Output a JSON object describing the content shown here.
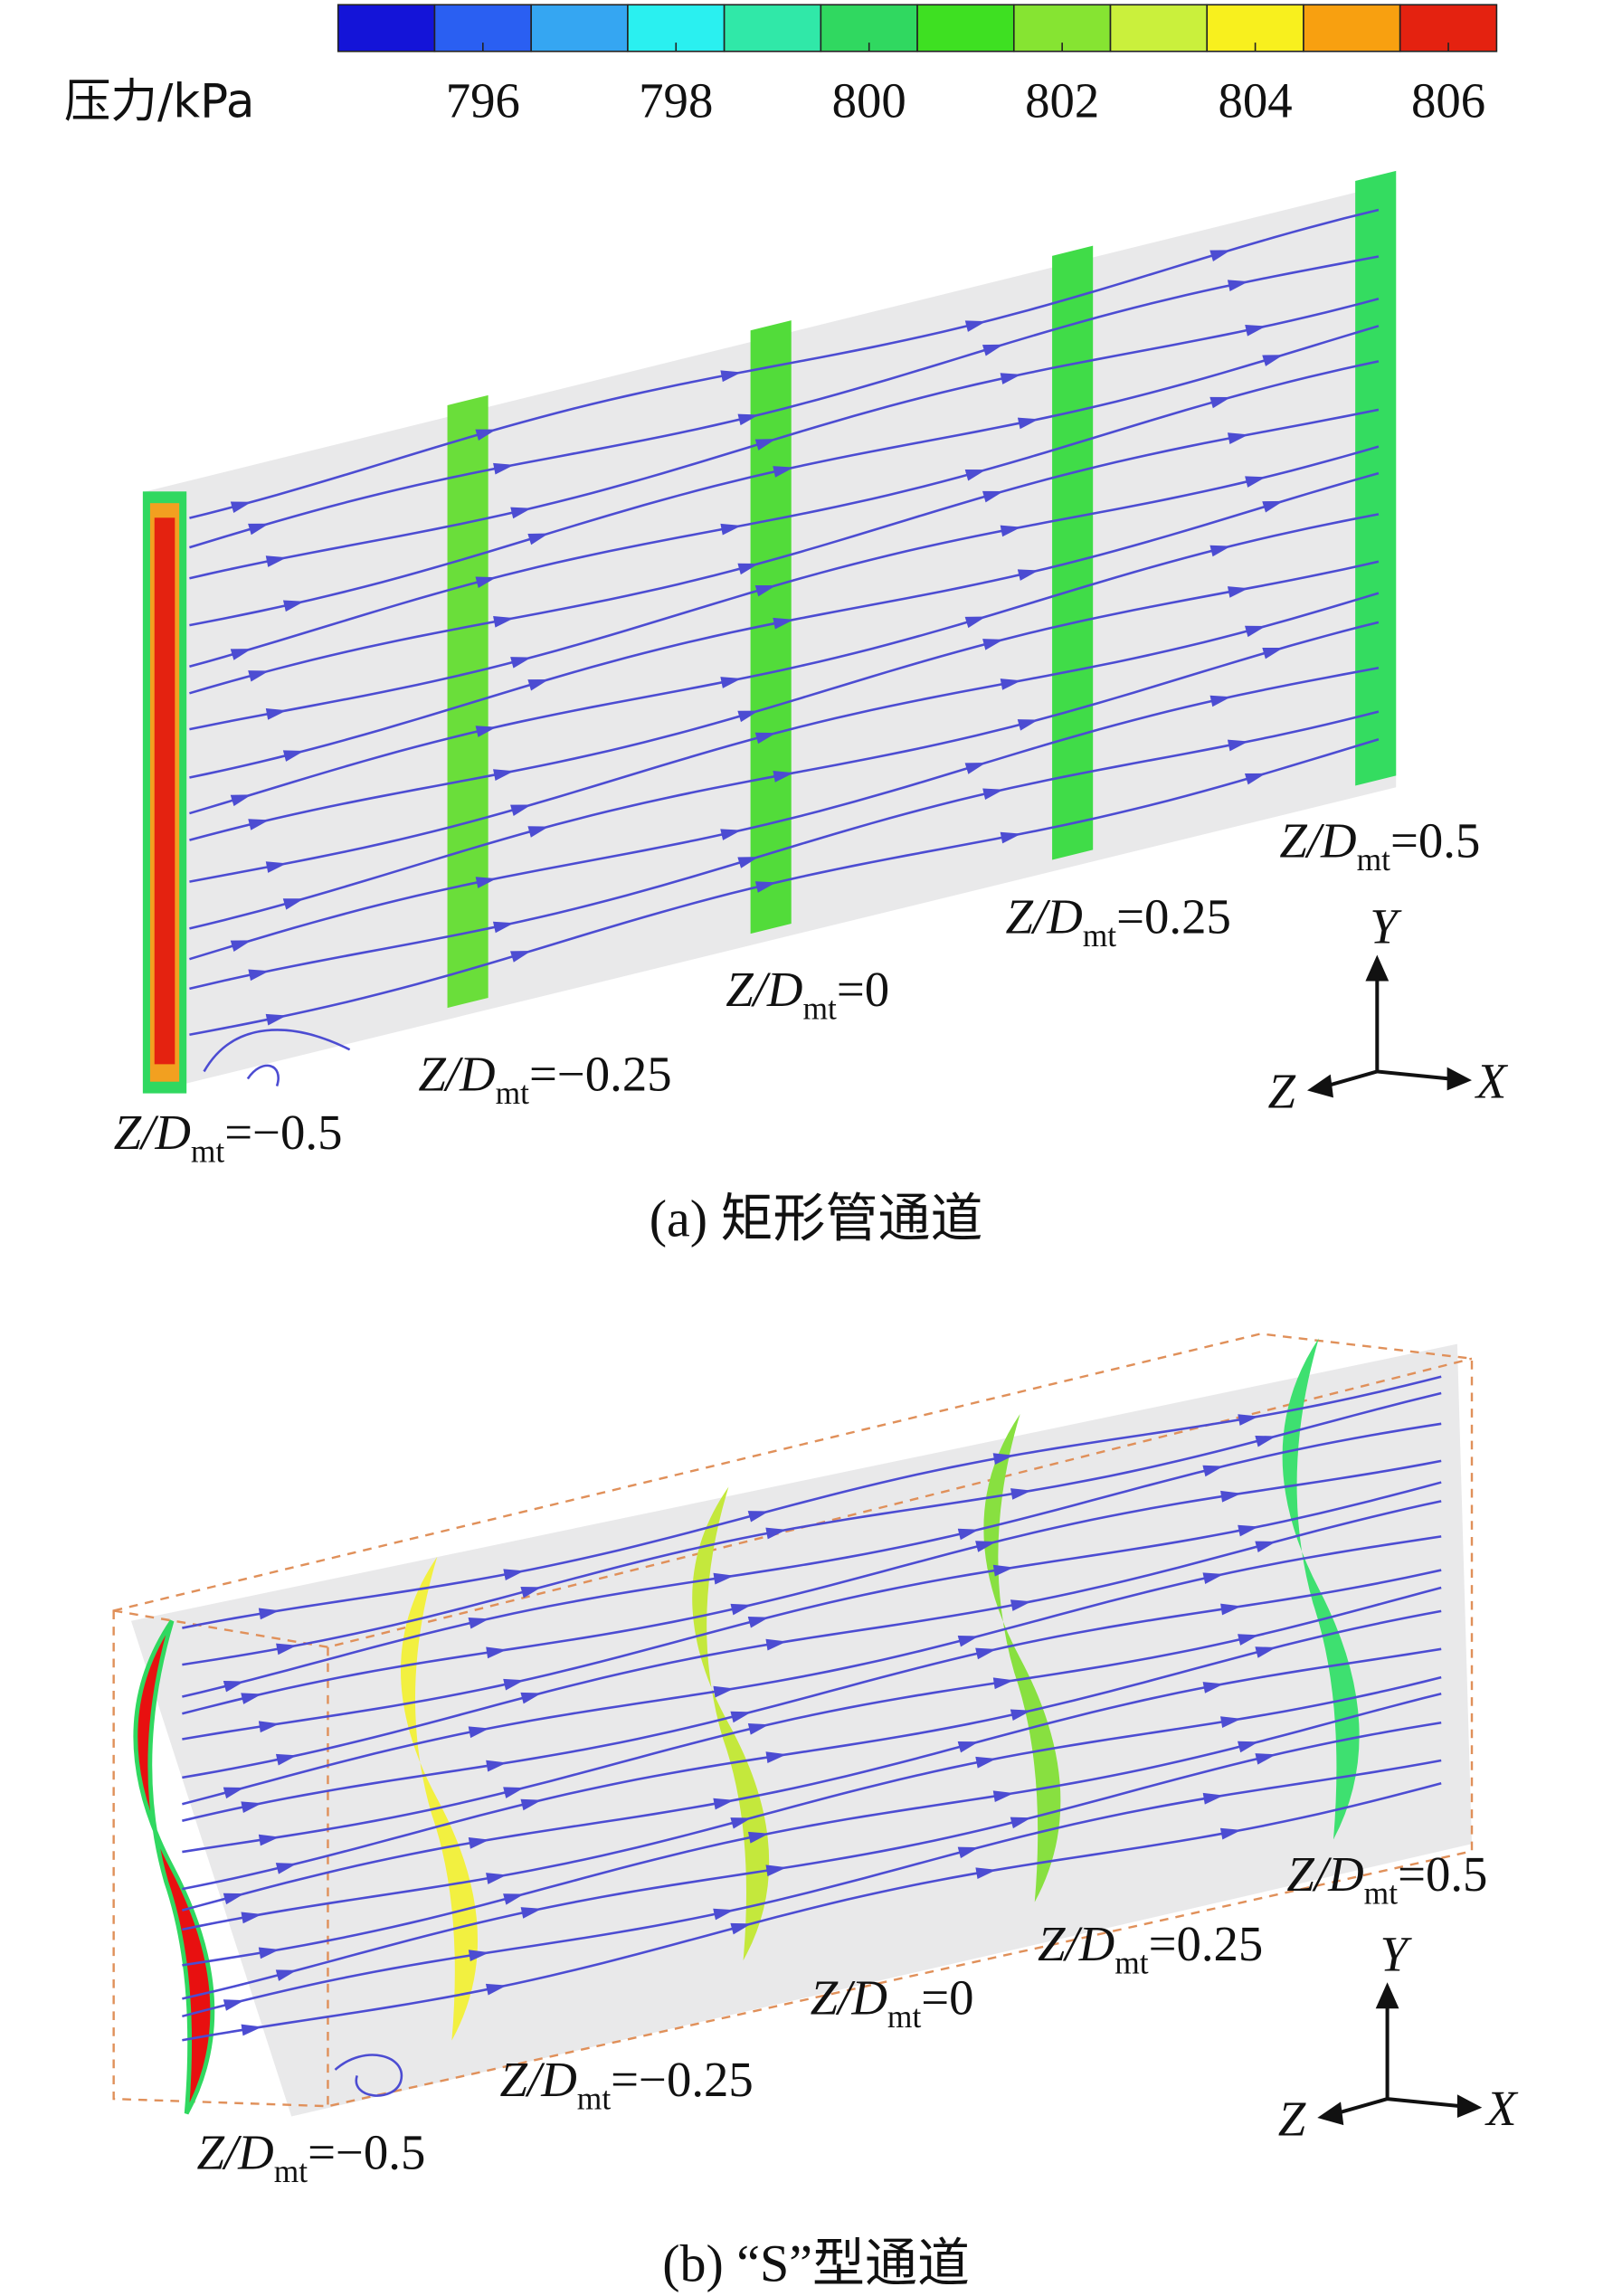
{
  "colorbar": {
    "label": "压力/kPa",
    "range": [
      794.5,
      806.5
    ],
    "ticks": [
      796,
      798,
      800,
      802,
      804,
      806
    ],
    "colors": [
      "#1414d8",
      "#2a5ff2",
      "#35a6f2",
      "#2af0f0",
      "#30e8a8",
      "#30d860",
      "#3ee022",
      "#86e432",
      "#caf03c",
      "#f8f01e",
      "#f8a010",
      "#e42210"
    ]
  },
  "panels": [
    {
      "caption": "(a) 矩形管通道",
      "sections": [
        {
          "var": "Z/D",
          "sub": "mt",
          "value": "=−0.5"
        },
        {
          "var": "Z/D",
          "sub": "mt",
          "value": "=−0.25"
        },
        {
          "var": "Z/D",
          "sub": "mt",
          "value": "=0"
        },
        {
          "var": "Z/D",
          "sub": "mt",
          "value": "=0.25"
        },
        {
          "var": "Z/D",
          "sub": "mt",
          "value": "=0.5"
        }
      ],
      "axes": {
        "y": "Y",
        "z": "Z",
        "x": "X"
      }
    },
    {
      "caption": "(b) “S”型通道",
      "sections": [
        {
          "var": "Z/D",
          "sub": "mt",
          "value": "=−0.5"
        },
        {
          "var": "Z/D",
          "sub": "mt",
          "value": "=−0.25"
        },
        {
          "var": "Z/D",
          "sub": "mt",
          "value": "=0"
        },
        {
          "var": "Z/D",
          "sub": "mt",
          "value": "=0.25"
        },
        {
          "var": "Z/D",
          "sub": "mt",
          "value": "=0.5"
        }
      ],
      "axes": {
        "y": "Y",
        "z": "Z",
        "x": "X"
      }
    }
  ]
}
